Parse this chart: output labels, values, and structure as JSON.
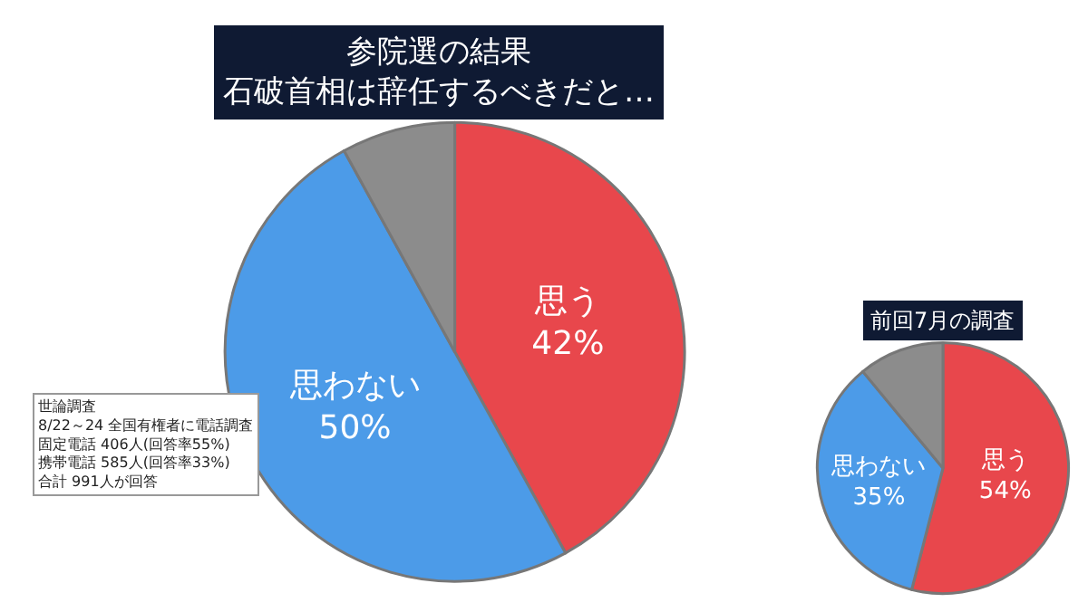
{
  "chart_data": [
    {
      "type": "pie",
      "title": "参院選の結果",
      "subtitle": "石破首相は辞任するべきだと…",
      "categories": [
        "思う",
        "思わない",
        null
      ],
      "values": [
        42,
        50,
        8
      ],
      "value_labels": [
        "42%",
        "50%",
        null
      ],
      "colors": [
        "#e8474c",
        "#4c9be8",
        "#8c8c8c"
      ],
      "legend": false,
      "annotations": [
        "世論調査",
        "8/22～24 全国有権者に電話調査",
        "固定電話 406人(回答率55%)",
        "携帯電話 585人(回答率33%)",
        "合計 991人が回答"
      ]
    },
    {
      "type": "pie",
      "title": "前回7月の調査",
      "categories": [
        "思う",
        "思わない",
        null
      ],
      "values": [
        54,
        35,
        11
      ],
      "value_labels": [
        "54%",
        "35%",
        null
      ],
      "colors": [
        "#e8474c",
        "#4c9be8",
        "#8c8c8c"
      ],
      "legend": false
    }
  ]
}
